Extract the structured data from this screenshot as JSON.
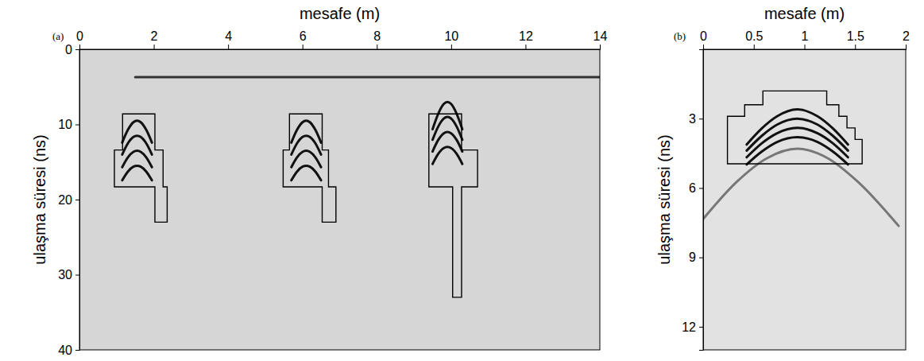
{
  "chart_data": [
    {
      "type": "radargram",
      "panel_label": "(a)",
      "x_label": "mesafe (m)",
      "y_label": "ulaşma süresi (ns)",
      "xlim": [
        0,
        14
      ],
      "xticks": [
        0,
        2,
        4,
        6,
        8,
        10,
        12,
        14
      ],
      "ylim": [
        0,
        40
      ],
      "yticks": [
        0,
        10,
        20,
        30,
        40
      ],
      "series": [
        {
          "color": "#333333",
          "x": [
            1.5,
            14
          ],
          "values": [
            3.7,
            3.7
          ]
        },
        {
          "color": "#111111",
          "x": [
            1.15,
            1.3,
            1.45,
            1.55,
            1.65,
            1.8,
            1.95
          ],
          "values": [
            12.42,
            10.75,
            9.71,
            9.5,
            9.71,
            10.75,
            12.42
          ]
        },
        {
          "color": "#111111",
          "x": [
            1.15,
            1.3,
            1.45,
            1.55,
            1.65,
            1.8,
            1.95
          ],
          "values": [
            14.01,
            12.54,
            11.67,
            11.5,
            11.67,
            12.54,
            14.01
          ]
        },
        {
          "color": "#111111",
          "x": [
            1.15,
            1.3,
            1.45,
            1.55,
            1.65,
            1.8,
            1.95
          ],
          "values": [
            15.69,
            14.4,
            13.65,
            13.5,
            13.65,
            14.4,
            15.69
          ]
        },
        {
          "color": "#111111",
          "x": [
            1.15,
            1.3,
            1.45,
            1.55,
            1.65,
            1.8,
            1.95
          ],
          "values": [
            17.44,
            16.29,
            15.63,
            15.5,
            15.63,
            16.29,
            17.44
          ]
        },
        {
          "color": "#111111",
          "x": [
            5.7,
            5.85,
            6.0,
            6.1,
            6.2,
            6.35,
            6.5
          ],
          "values": [
            12.42,
            10.75,
            9.71,
            9.5,
            9.71,
            10.75,
            12.42
          ]
        },
        {
          "color": "#111111",
          "x": [
            5.7,
            5.85,
            6.0,
            6.1,
            6.2,
            6.35,
            6.5
          ],
          "values": [
            14.01,
            12.54,
            11.67,
            11.5,
            11.67,
            12.54,
            14.01
          ]
        },
        {
          "color": "#111111",
          "x": [
            5.7,
            5.85,
            6.0,
            6.1,
            6.2,
            6.35,
            6.5
          ],
          "values": [
            15.69,
            14.4,
            13.65,
            13.5,
            13.65,
            14.4,
            15.69
          ]
        },
        {
          "color": "#111111",
          "x": [
            5.7,
            5.85,
            6.0,
            6.1,
            6.2,
            6.35,
            6.5
          ],
          "values": [
            17.44,
            16.29,
            15.63,
            15.5,
            15.63,
            16.29,
            17.44
          ]
        },
        {
          "color": "#111111",
          "x": [
            9.5,
            9.65,
            9.8,
            9.9,
            10.0,
            10.15,
            10.3
          ],
          "values": [
            10.63,
            8.6,
            7.28,
            7.0,
            7.28,
            8.6,
            10.63
          ]
        },
        {
          "color": "#111111",
          "x": [
            9.5,
            9.65,
            9.8,
            9.9,
            10.0,
            10.15,
            10.3
          ],
          "values": [
            12.04,
            10.3,
            9.22,
            9.0,
            9.22,
            10.3,
            12.04
          ]
        },
        {
          "color": "#111111",
          "x": [
            9.5,
            9.65,
            9.8,
            9.9,
            10.0,
            10.15,
            10.3
          ],
          "values": [
            13.6,
            12.08,
            11.18,
            11.0,
            11.18,
            12.08,
            13.6
          ]
        },
        {
          "color": "#111111",
          "x": [
            9.5,
            9.65,
            9.8,
            9.9,
            10.0,
            10.15,
            10.3
          ],
          "values": [
            15.26,
            13.93,
            13.15,
            13.0,
            13.15,
            13.93,
            15.26
          ]
        }
      ],
      "boxes": [
        {
          "x": [
            1.16,
            2.03,
            2.03,
            2.25,
            2.25,
            2.36,
            2.36,
            2.03,
            2.03,
            0.94,
            0.94,
            1.16
          ],
          "y": [
            8.6,
            8.6,
            13.4,
            13.4,
            18.3,
            18.3,
            23.0,
            23.0,
            18.3,
            18.3,
            13.4,
            13.4
          ]
        },
        {
          "x": [
            5.65,
            6.53,
            6.53,
            6.7,
            6.7,
            6.9,
            6.9,
            6.53,
            6.53,
            5.48,
            5.48,
            5.65
          ],
          "y": [
            8.6,
            8.6,
            13.4,
            13.4,
            18.3,
            18.3,
            23.0,
            23.0,
            18.3,
            18.3,
            13.4,
            13.4
          ]
        },
        {
          "x": [
            9.4,
            10.28,
            10.28,
            10.71,
            10.71,
            10.28,
            10.28,
            10.04,
            10.04,
            9.4
          ],
          "y": [
            8.6,
            8.6,
            13.4,
            13.4,
            18.3,
            18.3,
            33.0,
            33.0,
            18.3,
            18.3
          ]
        }
      ]
    },
    {
      "type": "radargram",
      "panel_label": "(b)",
      "x_label": "mesafe (m)",
      "y_label": "ulaşma süresi (ns)",
      "xlim": [
        0,
        2
      ],
      "xticks": [
        0,
        0.5,
        1,
        1.5,
        2
      ],
      "ylim": [
        0,
        13
      ],
      "yticks": [
        3,
        6,
        9,
        12
      ],
      "series": [
        {
          "color": "#111111",
          "x": [
            0.43,
            0.58,
            0.73,
            0.93,
            1.13,
            1.28,
            1.43
          ],
          "values": [
            4.12,
            3.42,
            2.9,
            2.6,
            2.9,
            3.42,
            4.12
          ]
        },
        {
          "color": "#111111",
          "x": [
            0.43,
            0.58,
            0.73,
            0.93,
            1.13,
            1.28,
            1.43
          ],
          "values": [
            4.38,
            3.74,
            3.26,
            3.0,
            3.26,
            3.74,
            4.38
          ]
        },
        {
          "color": "#111111",
          "x": [
            0.43,
            0.58,
            0.73,
            0.93,
            1.13,
            1.28,
            1.43
          ],
          "values": [
            4.67,
            4.06,
            3.63,
            3.4,
            3.63,
            4.06,
            4.67
          ]
        },
        {
          "color": "#111111",
          "x": [
            0.43,
            0.58,
            0.73,
            0.93,
            1.13,
            1.28,
            1.43
          ],
          "values": [
            4.98,
            4.42,
            4.01,
            3.8,
            4.01,
            4.42,
            4.98
          ]
        },
        {
          "color": "#777777",
          "x": [
            0.0,
            0.33,
            0.63,
            0.93,
            1.23,
            1.53,
            1.93
          ],
          "values": [
            7.34,
            5.74,
            4.71,
            4.3,
            4.71,
            5.74,
            7.64
          ]
        }
      ],
      "boxes": [
        {
          "x": [
            0.59,
            0.59,
            0.41,
            0.41,
            0.24,
            0.24,
            1.57,
            1.57,
            1.5,
            1.5,
            1.42,
            1.42,
            1.34,
            1.34,
            1.22,
            1.22
          ],
          "y": [
            1.8,
            2.4,
            2.4,
            2.9,
            2.9,
            4.95,
            4.95,
            3.9,
            3.9,
            3.4,
            3.4,
            2.9,
            2.9,
            2.4,
            2.4,
            1.8
          ]
        }
      ]
    }
  ]
}
